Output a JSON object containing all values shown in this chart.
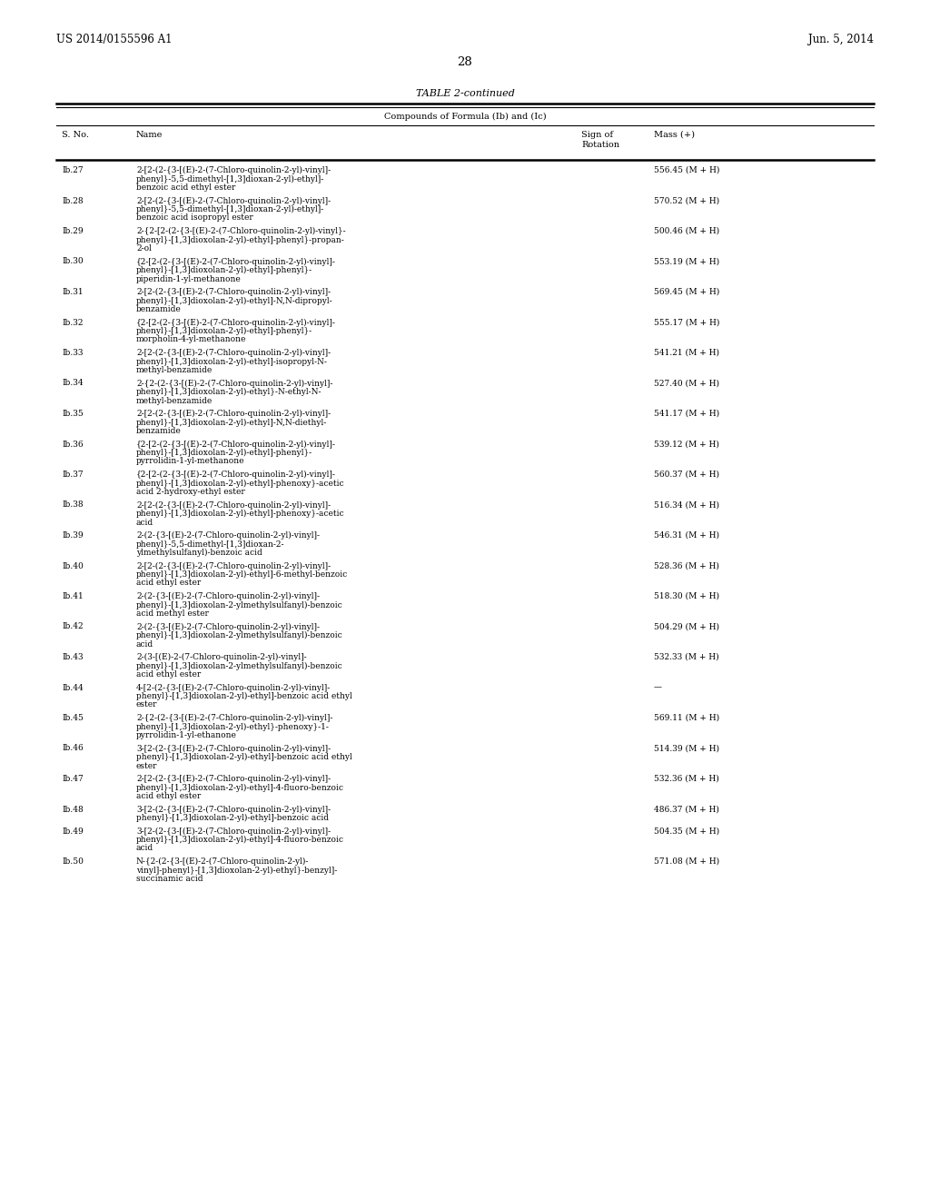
{
  "header_left": "US 2014/0155596 A1",
  "header_right": "Jun. 5, 2014",
  "page_number": "28",
  "table_title": "TABLE 2-continued",
  "table_subtitle": "Compounds of Formula (Ib) and (Ic)",
  "rows": [
    [
      "Ib.27",
      "2-[2-(2-{3-[(E)-2-(7-Chloro-quinolin-2-yl)-vinyl]-\nphenyl}-5,5-dimethyl-[1,3]dioxan-2-yl)-ethyl]-\nbenzoic acid ethyl ester",
      "",
      "556.45 (M + H)"
    ],
    [
      "Ib.28",
      "2-[2-(2-{3-[(E)-2-(7-Chloro-quinolin-2-yl)-vinyl]-\nphenyl}-5,5-dimethyl-[1,3]dioxan-2-yl)-ethyl]-\nbenzoic acid isopropyl ester",
      "",
      "570.52 (M + H)"
    ],
    [
      "Ib.29",
      "2-{2-[2-(2-{3-[(E)-2-(7-Chloro-quinolin-2-yl)-vinyl}-\nphenyl}-[1,3]dioxolan-2-yl)-ethyl]-phenyl}-propan-\n2-ol",
      "",
      "500.46 (M + H)"
    ],
    [
      "Ib.30",
      "{2-[2-(2-{3-[(E)-2-(7-Chloro-quinolin-2-yl)-vinyl]-\nphenyl}-[1,3]dioxolan-2-yl)-ethyl]-phenyl}-\npiperidin-1-yl-methanone",
      "",
      "553.19 (M + H)"
    ],
    [
      "Ib.31",
      "2-[2-(2-{3-[(E)-2-(7-Chloro-quinolin-2-yl)-vinyl]-\nphenyl}-[1,3]dioxolan-2-yl)-ethyl]-N,N-dipropyl-\nbenzamide",
      "",
      "569.45 (M + H)"
    ],
    [
      "Ib.32",
      "{2-[2-(2-{3-[(E)-2-(7-Chloro-quinolin-2-yl)-vinyl]-\nphenyl}-[1,3]dioxolan-2-yl)-ethyl]-phenyl}-\nmorpholin-4-yl-methanone",
      "",
      "555.17 (M + H)"
    ],
    [
      "Ib.33",
      "2-[2-(2-{3-[(E)-2-(7-Chloro-quinolin-2-yl)-vinyl]-\nphenyl}-[1,3]dioxolan-2-yl)-ethyl]-isopropyl-N-\nmethyl-benzamide",
      "",
      "541.21 (M + H)"
    ],
    [
      "Ib.34",
      "2-{2-(2-{3-[(E)-2-(7-Chloro-quinolin-2-yl)-vinyl]-\nphenyl}-[1,3]dioxolan-2-yl)-ethyl}-N-ethyl-N-\nmethyl-benzamide",
      "",
      "527.40 (M + H)"
    ],
    [
      "Ib.35",
      "2-[2-(2-{3-[(E)-2-(7-Chloro-quinolin-2-yl)-vinyl]-\nphenyl}-[1,3]dioxolan-2-yl)-ethyl]-N,N-diethyl-\nbenzamide",
      "",
      "541.17 (M + H)"
    ],
    [
      "Ib.36",
      "{2-[2-(2-{3-[(E)-2-(7-Chloro-quinolin-2-yl)-vinyl]-\nphenyl}-[1,3]dioxolan-2-yl)-ethyl]-phenyl}-\npyrrolidin-1-yl-methanone",
      "",
      "539.12 (M + H)"
    ],
    [
      "Ib.37",
      "{2-[2-(2-{3-[(E)-2-(7-Chloro-quinolin-2-yl)-vinyl]-\nphenyl}-[1,3]dioxolan-2-yl)-ethyl]-phenoxy}-acetic\nacid 2-hydroxy-ethyl ester",
      "",
      "560.37 (M + H)"
    ],
    [
      "Ib.38",
      "2-[2-(2-{3-[(E)-2-(7-Chloro-quinolin-2-yl)-vinyl]-\nphenyl}-[1,3]dioxolan-2-yl)-ethyl]-phenoxy}-acetic\nacid",
      "",
      "516.34 (M + H)"
    ],
    [
      "Ib.39",
      "2-(2-{3-[(E)-2-(7-Chloro-quinolin-2-yl)-vinyl]-\nphenyl}-5,5-dimethyl-[1,3]dioxan-2-\nylmethylsulfanyl)-benzoic acid",
      "",
      "546.31 (M + H)"
    ],
    [
      "Ib.40",
      "2-[2-(2-{3-[(E)-2-(7-Chloro-quinolin-2-yl)-vinyl]-\nphenyl}-[1,3]dioxolan-2-yl)-ethyl]-6-methyl-benzoic\nacid ethyl ester",
      "",
      "528.36 (M + H)"
    ],
    [
      "Ib.41",
      "2-(2-{3-[(E)-2-(7-Chloro-quinolin-2-yl)-vinyl]-\nphenyl}-[1,3]dioxolan-2-ylmethylsulfanyl)-benzoic\nacid methyl ester",
      "",
      "518.30 (M + H)"
    ],
    [
      "Ib.42",
      "2-(2-{3-[(E)-2-(7-Chloro-quinolin-2-yl)-vinyl]-\nphenyl}-[1,3]dioxolan-2-ylmethylsulfanyl)-benzoic\nacid",
      "",
      "504.29 (M + H)"
    ],
    [
      "Ib.43",
      "2-(3-[(E)-2-(7-Chloro-quinolin-2-yl)-vinyl]-\nphenyl}-[1,3]dioxolan-2-ylmethylsulfanyl)-benzoic\nacid ethyl ester",
      "",
      "532.33 (M + H)"
    ],
    [
      "Ib.44",
      "4-[2-(2-{3-[(E)-2-(7-Chloro-quinolin-2-yl)-vinyl]-\nphenyl}-[1,3]dioxolan-2-yl)-ethyl]-benzoic acid ethyl\nester",
      "",
      "—"
    ],
    [
      "Ib.45",
      "2-{2-(2-{3-[(E)-2-(7-Chloro-quinolin-2-yl)-vinyl]-\nphenyl}-[1,3]dioxolan-2-yl)-ethyl}-phenoxy}-1-\npyrrolidin-1-yl-ethanone",
      "",
      "569.11 (M + H)"
    ],
    [
      "Ib.46",
      "3-[2-(2-{3-[(E)-2-(7-Chloro-quinolin-2-yl)-vinyl]-\nphenyl}-[1,3]dioxolan-2-yl)-ethyl]-benzoic acid ethyl\nester",
      "",
      "514.39 (M + H)"
    ],
    [
      "Ib.47",
      "2-[2-(2-{3-[(E)-2-(7-Chloro-quinolin-2-yl)-vinyl]-\nphenyl}-[1,3]dioxolan-2-yl)-ethyl]-4-fluoro-benzoic\nacid ethyl ester",
      "",
      "532.36 (M + H)"
    ],
    [
      "Ib.48",
      "3-[2-(2-{3-[(E)-2-(7-Chloro-quinolin-2-yl)-vinyl]-\nphenyl}-[1,3]dioxolan-2-yl)-ethyl]-benzoic acid",
      "",
      "486.37 (M + H)"
    ],
    [
      "Ib.49",
      "3-[2-(2-{3-[(E)-2-(7-Chloro-quinolin-2-yl)-vinyl]-\nphenyl}-[1,3]dioxolan-2-yl)-ethyl]-4-fluoro-benzoic\nacid",
      "",
      "504.35 (M + H)"
    ],
    [
      "Ib.50",
      "N-{2-(2-{3-[(E)-2-(7-Chloro-quinolin-2-yl)-\nvinyl]-phenyl}-[1,3]dioxolan-2-yl)-ethyl}-benzyl]-\nsuccinamic acid",
      "",
      "571.08 (M + H)"
    ]
  ],
  "background_color": "#ffffff",
  "text_color": "#000000",
  "fs_header": 8.5,
  "fs_page": 9.5,
  "fs_title": 8.0,
  "fs_subtitle": 7.0,
  "fs_col_header": 7.0,
  "fs_body": 6.5
}
